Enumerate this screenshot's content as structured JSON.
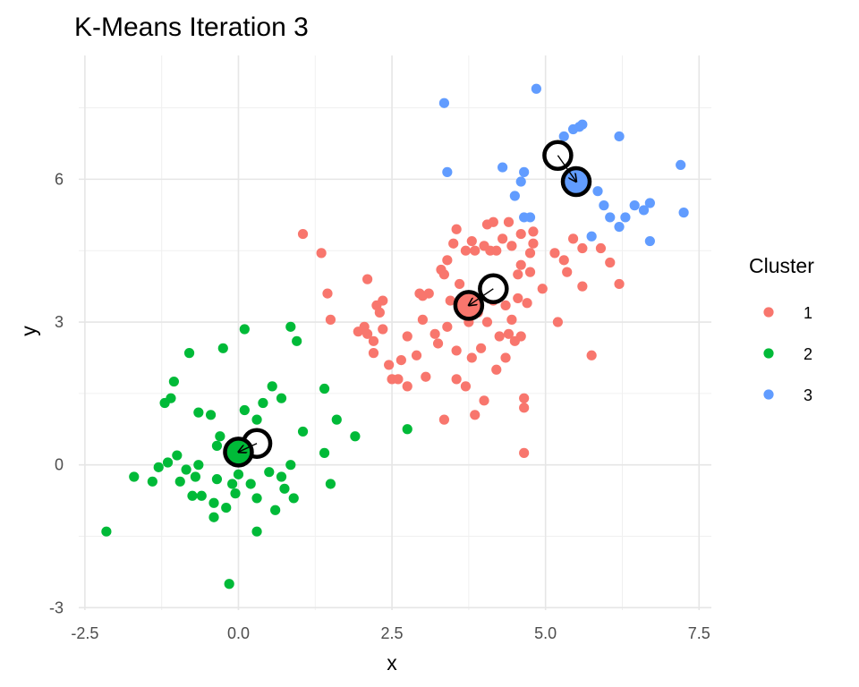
{
  "chart_data": {
    "type": "scatter",
    "title": "K-Means Iteration 3",
    "xlabel": "x",
    "ylabel": "y",
    "xlim": [
      -2.6,
      7.7
    ],
    "ylim": [
      -3.05,
      8.6
    ],
    "x_ticks": [
      -2.5,
      0.0,
      2.5,
      5.0,
      7.5
    ],
    "x_tick_labels": [
      "-2.5",
      "0.0",
      "2.5",
      "5.0",
      "7.5"
    ],
    "y_ticks": [
      -3,
      0,
      3,
      6
    ],
    "y_tick_labels": [
      "-3",
      "0",
      "3",
      "6"
    ],
    "grid": true,
    "legend": {
      "title": "Cluster",
      "position": "right",
      "entries": [
        {
          "label": "1",
          "color": "#F8766D"
        },
        {
          "label": "2",
          "color": "#00BA38"
        },
        {
          "label": "3",
          "color": "#619CFF"
        }
      ]
    },
    "series": [
      {
        "name": "1",
        "color": "#F8766D",
        "points": [
          [
            1.05,
            4.85
          ],
          [
            1.35,
            4.45
          ],
          [
            1.45,
            3.6
          ],
          [
            1.5,
            3.05
          ],
          [
            1.95,
            2.8
          ],
          [
            2.05,
            2.9
          ],
          [
            2.1,
            2.75
          ],
          [
            2.1,
            3.9
          ],
          [
            2.2,
            2.6
          ],
          [
            2.2,
            2.35
          ],
          [
            2.25,
            3.35
          ],
          [
            2.3,
            3.2
          ],
          [
            2.35,
            3.45
          ],
          [
            2.35,
            2.85
          ],
          [
            2.45,
            2.1
          ],
          [
            2.5,
            1.8
          ],
          [
            2.6,
            1.8
          ],
          [
            2.65,
            2.2
          ],
          [
            2.75,
            2.7
          ],
          [
            2.75,
            1.65
          ],
          [
            2.9,
            2.3
          ],
          [
            2.95,
            3.6
          ],
          [
            3.0,
            3.55
          ],
          [
            3.0,
            3.05
          ],
          [
            3.05,
            1.85
          ],
          [
            3.1,
            3.6
          ],
          [
            3.2,
            2.75
          ],
          [
            3.25,
            2.55
          ],
          [
            3.3,
            4.1
          ],
          [
            3.35,
            4.0
          ],
          [
            3.35,
            0.95
          ],
          [
            3.4,
            4.3
          ],
          [
            3.4,
            2.9
          ],
          [
            3.45,
            3.45
          ],
          [
            3.5,
            4.65
          ],
          [
            3.55,
            4.95
          ],
          [
            3.55,
            2.4
          ],
          [
            3.55,
            1.8
          ],
          [
            3.6,
            3.8
          ],
          [
            3.7,
            4.5
          ],
          [
            3.7,
            1.65
          ],
          [
            3.75,
            3.0
          ],
          [
            3.8,
            4.7
          ],
          [
            3.8,
            2.25
          ],
          [
            3.85,
            4.5
          ],
          [
            3.85,
            1.05
          ],
          [
            3.9,
            3.2
          ],
          [
            3.95,
            2.45
          ],
          [
            4.0,
            4.6
          ],
          [
            4.0,
            1.35
          ],
          [
            4.05,
            5.05
          ],
          [
            4.05,
            3.0
          ],
          [
            4.1,
            4.5
          ],
          [
            4.15,
            5.1
          ],
          [
            4.15,
            3.45
          ],
          [
            4.2,
            2.0
          ],
          [
            4.2,
            4.5
          ],
          [
            4.25,
            2.7
          ],
          [
            4.3,
            3.75
          ],
          [
            4.3,
            4.75
          ],
          [
            4.35,
            2.25
          ],
          [
            4.35,
            3.35
          ],
          [
            4.4,
            5.1
          ],
          [
            4.4,
            2.75
          ],
          [
            4.45,
            4.6
          ],
          [
            4.45,
            3.05
          ],
          [
            4.5,
            2.6
          ],
          [
            4.55,
            4.0
          ],
          [
            4.55,
            3.5
          ],
          [
            4.6,
            4.85
          ],
          [
            4.6,
            4.2
          ],
          [
            4.6,
            2.7
          ],
          [
            4.65,
            1.4
          ],
          [
            4.65,
            1.2
          ],
          [
            4.7,
            3.4
          ],
          [
            4.75,
            4.45
          ],
          [
            4.75,
            4.05
          ],
          [
            4.8,
            4.9
          ],
          [
            4.8,
            4.65
          ],
          [
            4.95,
            3.7
          ],
          [
            5.15,
            4.45
          ],
          [
            5.2,
            3.0
          ],
          [
            5.3,
            4.3
          ],
          [
            5.35,
            4.05
          ],
          [
            5.45,
            4.75
          ],
          [
            5.6,
            4.55
          ],
          [
            5.6,
            3.75
          ],
          [
            5.75,
            2.3
          ],
          [
            5.9,
            4.55
          ],
          [
            6.05,
            4.25
          ],
          [
            6.2,
            3.8
          ],
          [
            4.65,
            0.25
          ]
        ]
      },
      {
        "name": "2",
        "color": "#00BA38",
        "points": [
          [
            -2.15,
            -1.4
          ],
          [
            -1.7,
            -0.25
          ],
          [
            -1.4,
            -0.35
          ],
          [
            -1.3,
            -0.05
          ],
          [
            -1.2,
            1.3
          ],
          [
            -1.15,
            0.05
          ],
          [
            -1.1,
            1.4
          ],
          [
            -1.05,
            1.75
          ],
          [
            -1.0,
            0.2
          ],
          [
            -0.95,
            -0.35
          ],
          [
            -0.85,
            -0.1
          ],
          [
            -0.8,
            2.35
          ],
          [
            -0.75,
            -0.65
          ],
          [
            -0.7,
            -0.25
          ],
          [
            -0.65,
            1.1
          ],
          [
            -0.65,
            0.0
          ],
          [
            -0.6,
            -0.65
          ],
          [
            -0.45,
            1.05
          ],
          [
            -0.4,
            -0.8
          ],
          [
            -0.4,
            -1.1
          ],
          [
            -0.35,
            -0.3
          ],
          [
            -0.3,
            0.6
          ],
          [
            -0.25,
            2.45
          ],
          [
            -0.2,
            -0.9
          ],
          [
            -0.15,
            -2.5
          ],
          [
            -0.15,
            0.25
          ],
          [
            -0.1,
            -0.4
          ],
          [
            -0.05,
            -0.6
          ],
          [
            0.0,
            -0.2
          ],
          [
            0.05,
            0.25
          ],
          [
            0.1,
            2.85
          ],
          [
            0.1,
            1.15
          ],
          [
            0.2,
            -0.4
          ],
          [
            0.25,
            0.4
          ],
          [
            0.3,
            0.95
          ],
          [
            0.3,
            -0.7
          ],
          [
            0.3,
            -1.4
          ],
          [
            0.4,
            1.3
          ],
          [
            0.5,
            -0.15
          ],
          [
            0.55,
            1.65
          ],
          [
            0.6,
            -0.95
          ],
          [
            0.7,
            -0.25
          ],
          [
            0.7,
            1.4
          ],
          [
            0.75,
            -0.5
          ],
          [
            0.85,
            2.9
          ],
          [
            0.85,
            0.0
          ],
          [
            0.9,
            -0.7
          ],
          [
            0.95,
            2.6
          ],
          [
            1.05,
            0.7
          ],
          [
            1.4,
            0.25
          ],
          [
            1.4,
            1.6
          ],
          [
            1.5,
            -0.4
          ],
          [
            1.6,
            0.95
          ],
          [
            1.9,
            0.6
          ],
          [
            2.75,
            0.75
          ],
          [
            -0.35,
            0.4
          ]
        ]
      },
      {
        "name": "3",
        "color": "#619CFF",
        "points": [
          [
            3.35,
            7.6
          ],
          [
            3.4,
            6.15
          ],
          [
            4.3,
            6.25
          ],
          [
            4.5,
            5.65
          ],
          [
            4.6,
            5.95
          ],
          [
            4.65,
            6.15
          ],
          [
            4.65,
            5.2
          ],
          [
            4.75,
            5.2
          ],
          [
            4.85,
            7.9
          ],
          [
            5.3,
            6.9
          ],
          [
            5.45,
            7.05
          ],
          [
            5.55,
            7.1
          ],
          [
            5.6,
            7.15
          ],
          [
            5.65,
            5.9
          ],
          [
            5.75,
            4.8
          ],
          [
            5.85,
            5.75
          ],
          [
            5.95,
            5.45
          ],
          [
            6.05,
            5.2
          ],
          [
            6.2,
            5.0
          ],
          [
            6.2,
            6.9
          ],
          [
            6.3,
            5.2
          ],
          [
            6.45,
            5.45
          ],
          [
            6.6,
            5.35
          ],
          [
            6.7,
            4.7
          ],
          [
            6.7,
            5.5
          ],
          [
            7.2,
            6.3
          ],
          [
            7.25,
            5.3
          ]
        ]
      }
    ],
    "centroids": [
      {
        "cluster": "1",
        "color": "#F8766D",
        "old": [
          4.15,
          3.7
        ],
        "new": [
          3.75,
          3.35
        ]
      },
      {
        "cluster": "2",
        "color": "#00BA38",
        "old": [
          0.3,
          0.45
        ],
        "new": [
          0.0,
          0.27
        ]
      },
      {
        "cluster": "3",
        "color": "#619CFF",
        "old": [
          5.2,
          6.5
        ],
        "new": [
          5.5,
          5.95
        ]
      }
    ]
  }
}
